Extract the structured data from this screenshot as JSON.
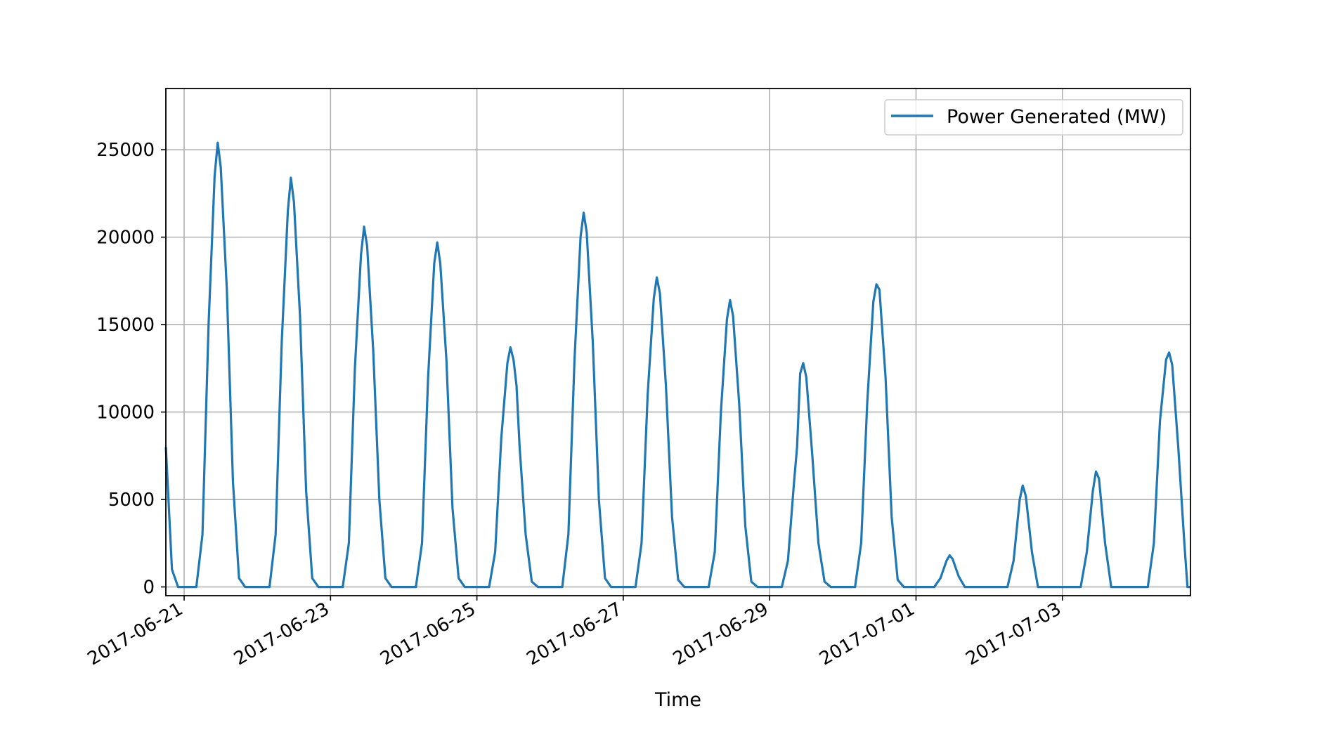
{
  "chart_data": {
    "type": "line",
    "title": "",
    "xlabel": "Time",
    "ylabel": "",
    "xlim": [
      "2017-06-20T18:00",
      "2017-07-04T18:00"
    ],
    "ylim": [
      -500,
      28500
    ],
    "grid": true,
    "legend_position": "top-right",
    "x_ticks": [
      "2017-06-21",
      "2017-06-23",
      "2017-06-25",
      "2017-06-27",
      "2017-06-29",
      "2017-07-01",
      "2017-07-03"
    ],
    "y_ticks": [
      0,
      5000,
      10000,
      15000,
      20000,
      25000
    ],
    "series": [
      {
        "name": "Power Generated (MW)",
        "color": "#1f77b4",
        "points": [
          [
            "2017-06-20T18:00",
            8000
          ],
          [
            "2017-06-20T20:00",
            1000
          ],
          [
            "2017-06-20T22:00",
            0
          ],
          [
            "2017-06-21T04:00",
            0
          ],
          [
            "2017-06-21T06:00",
            3000
          ],
          [
            "2017-06-21T08:00",
            15000
          ],
          [
            "2017-06-21T10:00",
            23500
          ],
          [
            "2017-06-21T11:00",
            25400
          ],
          [
            "2017-06-21T12:00",
            24000
          ],
          [
            "2017-06-21T14:00",
            17000
          ],
          [
            "2017-06-21T16:00",
            6000
          ],
          [
            "2017-06-21T18:00",
            500
          ],
          [
            "2017-06-21T20:00",
            0
          ],
          [
            "2017-06-22T04:00",
            0
          ],
          [
            "2017-06-22T06:00",
            3000
          ],
          [
            "2017-06-22T08:00",
            14000
          ],
          [
            "2017-06-22T10:00",
            21500
          ],
          [
            "2017-06-22T11:00",
            23400
          ],
          [
            "2017-06-22T12:00",
            22000
          ],
          [
            "2017-06-22T14:00",
            15500
          ],
          [
            "2017-06-22T16:00",
            5500
          ],
          [
            "2017-06-22T18:00",
            500
          ],
          [
            "2017-06-22T20:00",
            0
          ],
          [
            "2017-06-23T04:00",
            0
          ],
          [
            "2017-06-23T06:00",
            2500
          ],
          [
            "2017-06-23T08:00",
            12500
          ],
          [
            "2017-06-23T10:00",
            19000
          ],
          [
            "2017-06-23T11:00",
            20600
          ],
          [
            "2017-06-23T12:00",
            19500
          ],
          [
            "2017-06-23T14:00",
            13500
          ],
          [
            "2017-06-23T16:00",
            5000
          ],
          [
            "2017-06-23T18:00",
            500
          ],
          [
            "2017-06-23T20:00",
            0
          ],
          [
            "2017-06-24T04:00",
            0
          ],
          [
            "2017-06-24T06:00",
            2500
          ],
          [
            "2017-06-24T08:00",
            12000
          ],
          [
            "2017-06-24T10:00",
            18500
          ],
          [
            "2017-06-24T11:00",
            19700
          ],
          [
            "2017-06-24T12:00",
            18500
          ],
          [
            "2017-06-24T14:00",
            13000
          ],
          [
            "2017-06-24T16:00",
            4500
          ],
          [
            "2017-06-24T18:00",
            500
          ],
          [
            "2017-06-24T20:00",
            0
          ],
          [
            "2017-06-25T04:00",
            0
          ],
          [
            "2017-06-25T06:00",
            2000
          ],
          [
            "2017-06-25T08:00",
            8500
          ],
          [
            "2017-06-25T10:00",
            12800
          ],
          [
            "2017-06-25T11:00",
            13700
          ],
          [
            "2017-06-25T12:00",
            13000
          ],
          [
            "2017-06-25T13:00",
            11500
          ],
          [
            "2017-06-25T14:00",
            8000
          ],
          [
            "2017-06-25T16:00",
            3000
          ],
          [
            "2017-06-25T18:00",
            300
          ],
          [
            "2017-06-25T20:00",
            0
          ],
          [
            "2017-06-26T04:00",
            0
          ],
          [
            "2017-06-26T06:00",
            3000
          ],
          [
            "2017-06-26T08:00",
            13000
          ],
          [
            "2017-06-26T10:00",
            20000
          ],
          [
            "2017-06-26T11:00",
            21400
          ],
          [
            "2017-06-26T12:00",
            20300
          ],
          [
            "2017-06-26T14:00",
            14000
          ],
          [
            "2017-06-26T16:00",
            5000
          ],
          [
            "2017-06-26T18:00",
            500
          ],
          [
            "2017-06-26T20:00",
            0
          ],
          [
            "2017-06-27T04:00",
            0
          ],
          [
            "2017-06-27T06:00",
            2500
          ],
          [
            "2017-06-27T08:00",
            11000
          ],
          [
            "2017-06-27T10:00",
            16500
          ],
          [
            "2017-06-27T11:00",
            17700
          ],
          [
            "2017-06-27T12:00",
            16800
          ],
          [
            "2017-06-27T14:00",
            11500
          ],
          [
            "2017-06-27T16:00",
            4000
          ],
          [
            "2017-06-27T18:00",
            400
          ],
          [
            "2017-06-27T20:00",
            0
          ],
          [
            "2017-06-28T04:00",
            0
          ],
          [
            "2017-06-28T06:00",
            2000
          ],
          [
            "2017-06-28T08:00",
            10000
          ],
          [
            "2017-06-28T10:00",
            15300
          ],
          [
            "2017-06-28T11:00",
            16400
          ],
          [
            "2017-06-28T12:00",
            15500
          ],
          [
            "2017-06-28T14:00",
            10500
          ],
          [
            "2017-06-28T16:00",
            3500
          ],
          [
            "2017-06-28T18:00",
            300
          ],
          [
            "2017-06-28T20:00",
            0
          ],
          [
            "2017-06-29T04:00",
            0
          ],
          [
            "2017-06-29T06:00",
            1500
          ],
          [
            "2017-06-29T08:00",
            6000
          ],
          [
            "2017-06-29T09:00",
            8000
          ],
          [
            "2017-06-29T10:00",
            12200
          ],
          [
            "2017-06-29T11:00",
            12800
          ],
          [
            "2017-06-29T12:00",
            12000
          ],
          [
            "2017-06-29T14:00",
            7500
          ],
          [
            "2017-06-29T16:00",
            2500
          ],
          [
            "2017-06-29T18:00",
            300
          ],
          [
            "2017-06-29T20:00",
            0
          ],
          [
            "2017-06-30T04:00",
            0
          ],
          [
            "2017-06-30T06:00",
            2500
          ],
          [
            "2017-06-30T08:00",
            10500
          ],
          [
            "2017-06-30T10:00",
            16300
          ],
          [
            "2017-06-30T11:00",
            17300
          ],
          [
            "2017-06-30T12:00",
            17000
          ],
          [
            "2017-06-30T14:00",
            12000
          ],
          [
            "2017-06-30T16:00",
            4000
          ],
          [
            "2017-06-30T18:00",
            400
          ],
          [
            "2017-06-30T20:00",
            0
          ],
          [
            "2017-07-01T06:00",
            0
          ],
          [
            "2017-07-01T08:00",
            500
          ],
          [
            "2017-07-01T10:00",
            1500
          ],
          [
            "2017-07-01T11:00",
            1800
          ],
          [
            "2017-07-01T12:00",
            1600
          ],
          [
            "2017-07-01T14:00",
            600
          ],
          [
            "2017-07-01T16:00",
            0
          ],
          [
            "2017-07-02T06:00",
            0
          ],
          [
            "2017-07-02T08:00",
            1500
          ],
          [
            "2017-07-02T10:00",
            5000
          ],
          [
            "2017-07-02T11:00",
            5800
          ],
          [
            "2017-07-02T12:00",
            5200
          ],
          [
            "2017-07-02T14:00",
            2000
          ],
          [
            "2017-07-02T16:00",
            0
          ],
          [
            "2017-07-03T06:00",
            0
          ],
          [
            "2017-07-03T08:00",
            2000
          ],
          [
            "2017-07-03T10:00",
            5500
          ],
          [
            "2017-07-03T11:00",
            6600
          ],
          [
            "2017-07-03T12:00",
            6200
          ],
          [
            "2017-07-03T14:00",
            2500
          ],
          [
            "2017-07-03T16:00",
            0
          ],
          [
            "2017-07-04T04:00",
            0
          ],
          [
            "2017-07-04T06:00",
            2500
          ],
          [
            "2017-07-04T08:00",
            9500
          ],
          [
            "2017-07-04T10:00",
            13000
          ],
          [
            "2017-07-04T11:00",
            13400
          ],
          [
            "2017-07-04T12:00",
            12700
          ],
          [
            "2017-07-04T14:00",
            8000
          ],
          [
            "2017-07-04T16:00",
            2500
          ],
          [
            "2017-07-04T17:00",
            0
          ],
          [
            "2017-07-04T18:00",
            0
          ]
        ]
      }
    ]
  }
}
